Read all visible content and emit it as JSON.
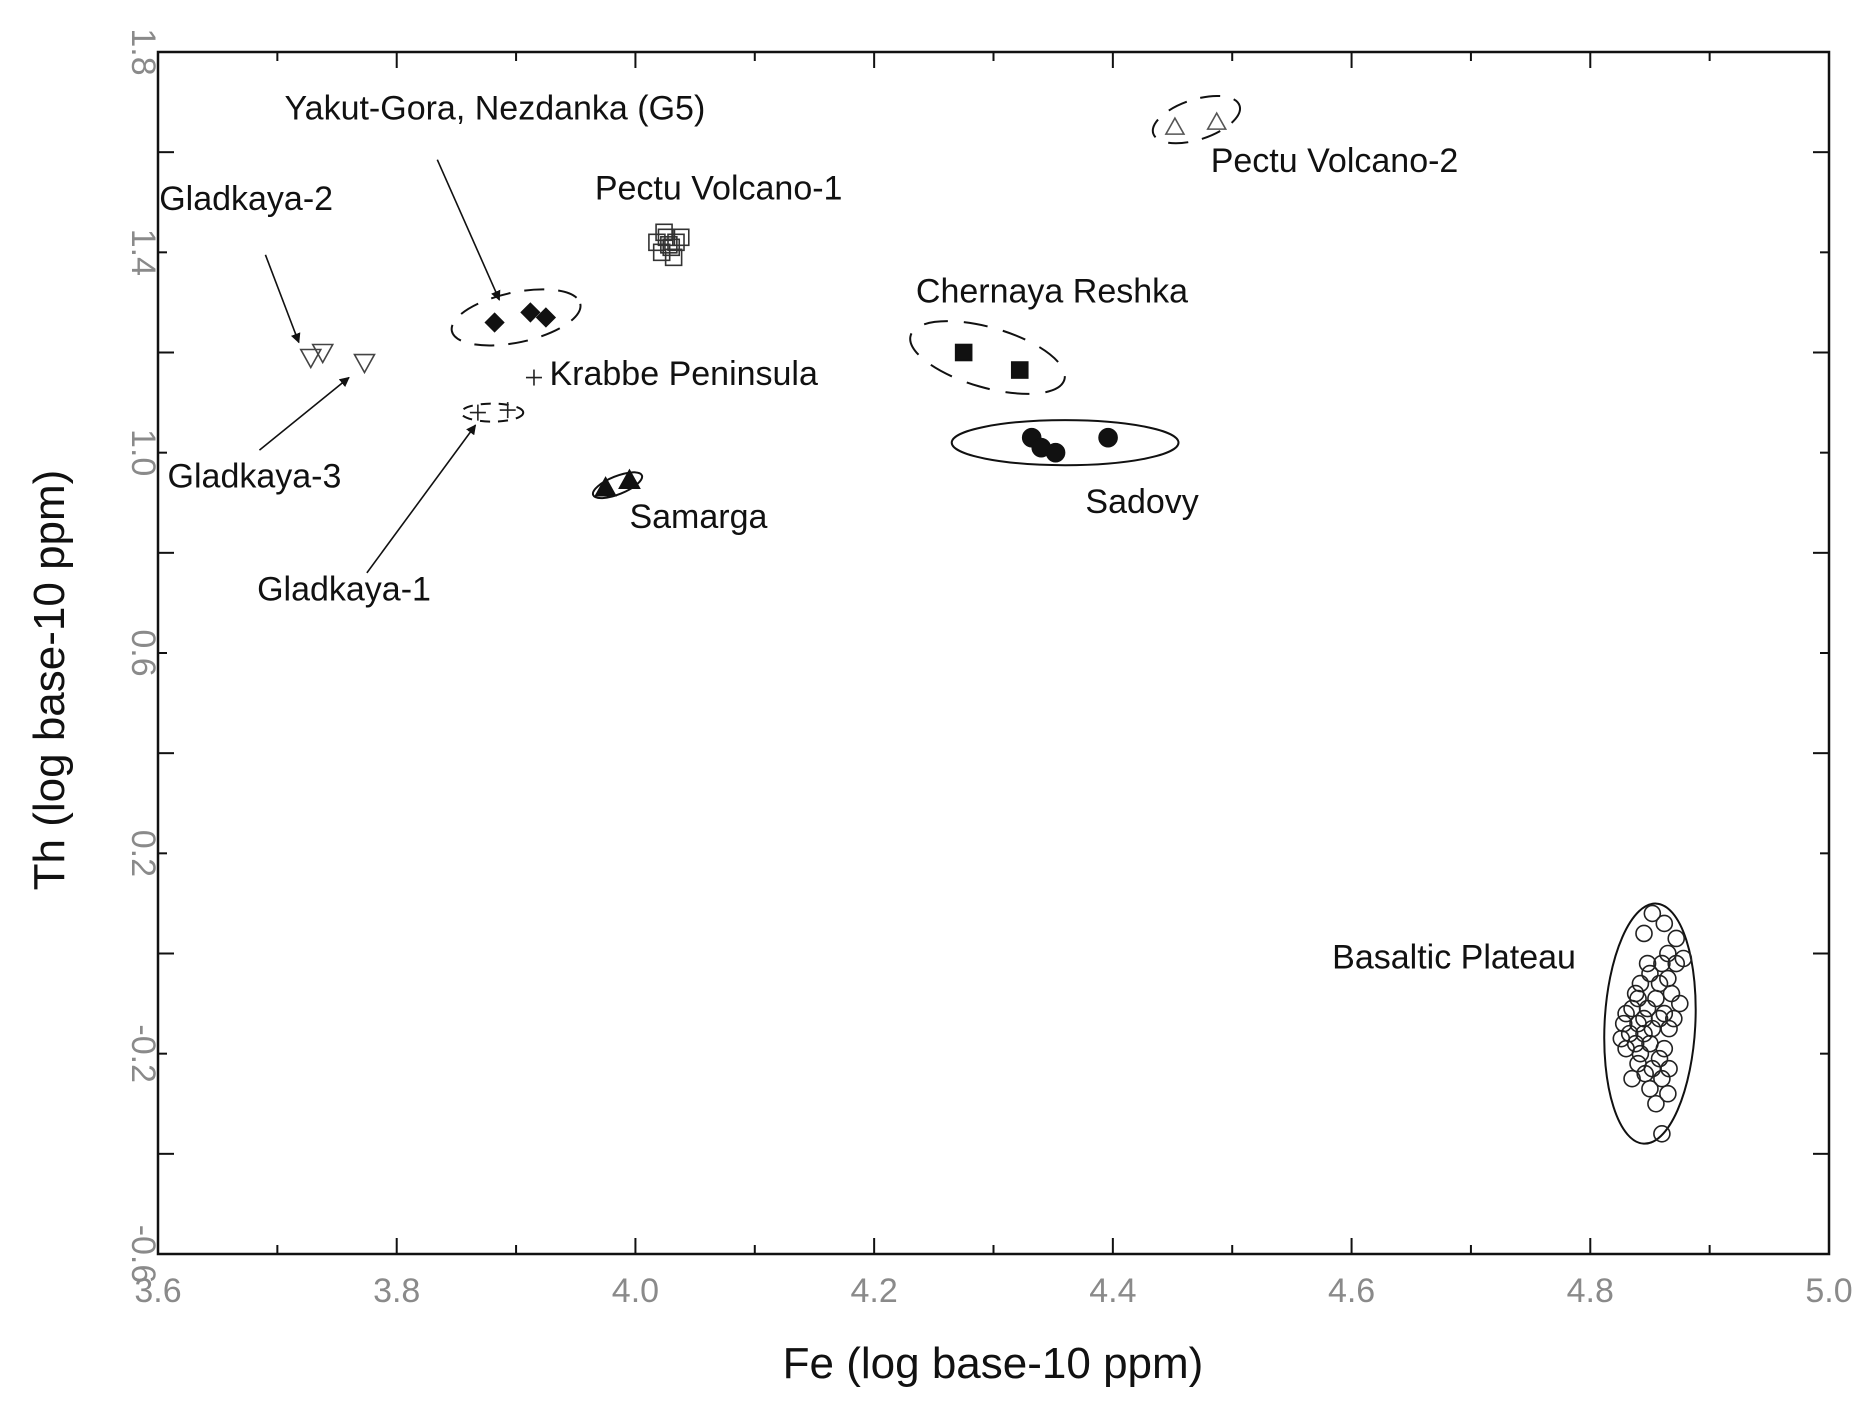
{
  "chart_data": {
    "type": "scatter",
    "title": "",
    "xlabel": "Fe (log base-10 ppm)",
    "ylabel": "Th (log base-10 ppm)",
    "xlim": [
      3.6,
      5.0
    ],
    "ylim": [
      -0.6,
      1.8
    ],
    "x_ticks": [
      "3.6",
      "3.8",
      "4.0",
      "4.2",
      "4.4",
      "4.6",
      "4.8",
      "5.0"
    ],
    "y_ticks": [
      "-0.6",
      "-0.2",
      "0.2",
      "0.6",
      "1.0",
      "1.4",
      "1.8"
    ],
    "grid": false,
    "labels": {
      "yakut_gora": "Yakut-Gora, Nezdanka (G5)",
      "pectu1": "Pectu Volcano-1",
      "pectu2": "Pectu Volcano-2",
      "gladkaya2": "Gladkaya-2",
      "gladkaya3": "Gladkaya-3",
      "gladkaya1": "Gladkaya-1",
      "krabbe": "Krabbe Peninsula",
      "samarga": "Samarga",
      "chernaya": "Chernaya Reshka",
      "sadovy": "Sadovy",
      "basaltic": "Basaltic Plateau"
    },
    "series": [
      {
        "name": "Yakut-Gora, Nezdanka (G5)",
        "marker": "diamond-filled",
        "points": [
          [
            3.882,
            1.26
          ],
          [
            3.912,
            1.28
          ],
          [
            3.925,
            1.27
          ]
        ]
      },
      {
        "name": "Pectu Volcano-1",
        "marker": "square-open",
        "points": [
          [
            4.018,
            1.42
          ],
          [
            4.022,
            1.4
          ],
          [
            4.026,
            1.43
          ],
          [
            4.03,
            1.41
          ],
          [
            4.034,
            1.42
          ],
          [
            4.038,
            1.43
          ],
          [
            4.024,
            1.44
          ],
          [
            4.032,
            1.39
          ],
          [
            4.028,
            1.415
          ]
        ]
      },
      {
        "name": "Pectu Volcano-2",
        "marker": "triangle-up-open",
        "points": [
          [
            4.452,
            1.65
          ],
          [
            4.487,
            1.66
          ]
        ]
      },
      {
        "name": "Gladkaya-2",
        "marker": "triangle-down-open",
        "points": [
          [
            3.728,
            1.19
          ],
          [
            3.738,
            1.2
          ]
        ]
      },
      {
        "name": "Gladkaya-3",
        "marker": "triangle-down-open",
        "points": [
          [
            3.773,
            1.18
          ]
        ]
      },
      {
        "name": "Gladkaya-1",
        "marker": "cross",
        "points": [
          [
            3.868,
            1.08
          ],
          [
            3.893,
            1.085
          ]
        ]
      },
      {
        "name": "Krabbe Peninsula",
        "marker": "cross",
        "points": [
          [
            3.915,
            1.15
          ]
        ]
      },
      {
        "name": "Samarga",
        "marker": "triangle-up-filled",
        "points": [
          [
            3.975,
            0.93
          ],
          [
            3.995,
            0.945
          ]
        ]
      },
      {
        "name": "Chernaya Reshka",
        "marker": "square-filled",
        "points": [
          [
            4.275,
            1.2
          ],
          [
            4.322,
            1.165
          ]
        ]
      },
      {
        "name": "Sadovy",
        "marker": "circle-filled",
        "points": [
          [
            4.332,
            1.03
          ],
          [
            4.34,
            1.01
          ],
          [
            4.352,
            1.0
          ],
          [
            4.396,
            1.03
          ]
        ]
      },
      {
        "name": "Basaltic Plateau",
        "marker": "circle-open",
        "points": [
          [
            4.852,
            0.08
          ],
          [
            4.862,
            0.06
          ],
          [
            4.872,
            0.03
          ],
          [
            4.845,
            0.04
          ],
          [
            4.865,
            0.0
          ],
          [
            4.878,
            -0.01
          ],
          [
            4.872,
            -0.02
          ],
          [
            4.86,
            -0.02
          ],
          [
            4.85,
            -0.04
          ],
          [
            4.842,
            -0.06
          ],
          [
            4.858,
            -0.06
          ],
          [
            4.868,
            -0.08
          ],
          [
            4.84,
            -0.09
          ],
          [
            4.855,
            -0.09
          ],
          [
            4.875,
            -0.1
          ],
          [
            4.835,
            -0.11
          ],
          [
            4.848,
            -0.11
          ],
          [
            4.862,
            -0.12
          ],
          [
            4.83,
            -0.12
          ],
          [
            4.845,
            -0.13
          ],
          [
            4.858,
            -0.13
          ],
          [
            4.87,
            -0.13
          ],
          [
            4.828,
            -0.14
          ],
          [
            4.84,
            -0.14
          ],
          [
            4.852,
            -0.15
          ],
          [
            4.866,
            -0.15
          ],
          [
            4.833,
            -0.16
          ],
          [
            4.845,
            -0.16
          ],
          [
            4.826,
            -0.17
          ],
          [
            4.838,
            -0.18
          ],
          [
            4.85,
            -0.18
          ],
          [
            4.862,
            -0.19
          ],
          [
            4.83,
            -0.19
          ],
          [
            4.842,
            -0.2
          ],
          [
            4.858,
            -0.21
          ],
          [
            4.84,
            -0.22
          ],
          [
            4.852,
            -0.23
          ],
          [
            4.866,
            -0.23
          ],
          [
            4.835,
            -0.25
          ],
          [
            4.86,
            -0.25
          ],
          [
            4.85,
            -0.27
          ],
          [
            4.855,
            -0.3
          ],
          [
            4.865,
            -0.28
          ],
          [
            4.846,
            -0.24
          ],
          [
            4.838,
            -0.08
          ],
          [
            4.86,
            -0.36
          ],
          [
            4.865,
            -0.05
          ],
          [
            4.848,
            -0.02
          ]
        ]
      }
    ],
    "ellipses": [
      {
        "group": "Yakut-Gora, Nezdanka (G5)",
        "cx": 3.9,
        "cy": 1.27,
        "rx": 0.055,
        "ry": 0.05,
        "rotate": -12,
        "dash": "20 14"
      },
      {
        "group": "Pectu Volcano-2",
        "cx": 4.47,
        "cy": 1.665,
        "rx": 0.038,
        "ry": 0.04,
        "rotate": -18,
        "dash": "20 14"
      },
      {
        "group": "Gladkaya-1",
        "cx": 3.88,
        "cy": 1.08,
        "rx": 0.026,
        "ry": 0.018,
        "rotate": 0,
        "dash": "10 8"
      },
      {
        "group": "Samarga",
        "cx": 3.985,
        "cy": 0.935,
        "rx": 0.022,
        "ry": 0.018,
        "rotate": -22,
        "dash": ""
      },
      {
        "group": "Chernaya Reshka",
        "cx": 4.295,
        "cy": 1.19,
        "rx": 0.067,
        "ry": 0.06,
        "rotate": 16,
        "dash": "24 16"
      },
      {
        "group": "Sadovy",
        "cx": 4.36,
        "cy": 1.02,
        "rx": 0.095,
        "ry": 0.045,
        "rotate": 0,
        "dash": ""
      },
      {
        "group": "Basaltic Plateau",
        "cx": 4.85,
        "cy": -0.14,
        "rx": 0.038,
        "ry": 0.24,
        "rotate": 3,
        "dash": ""
      }
    ],
    "annotations": [
      {
        "label_key": "yakut_gora",
        "text": "Yakut-Gora, Nezdanka (G5)",
        "text_at": [
          3.706,
          1.665
        ],
        "anchor": "start",
        "arrow_from": [
          3.834,
          1.585
        ],
        "arrow_to": [
          3.886,
          1.305
        ]
      },
      {
        "label_key": "pectu1",
        "text": "Pectu Volcano-1",
        "text_at": [
          3.966,
          1.505
        ],
        "anchor": "start"
      },
      {
        "label_key": "pectu2",
        "text": "Pectu Volcano-2",
        "text_at": [
          4.482,
          1.56
        ],
        "anchor": "start"
      },
      {
        "label_key": "gladkaya2",
        "text": "Gladkaya-2",
        "text_at": [
          3.601,
          1.485
        ],
        "anchor": "start",
        "arrow_from": [
          3.69,
          1.395
        ],
        "arrow_to": [
          3.718,
          1.22
        ]
      },
      {
        "label_key": "gladkaya3",
        "text": "Gladkaya-3",
        "text_at": [
          3.608,
          0.93
        ],
        "anchor": "start",
        "arrow_from": [
          3.685,
          1.005
        ],
        "arrow_to": [
          3.76,
          1.15
        ]
      },
      {
        "label_key": "gladkaya1",
        "text": "Gladkaya-1",
        "text_at": [
          3.683,
          0.705
        ],
        "anchor": "start",
        "arrow_from": [
          3.775,
          0.76
        ],
        "arrow_to": [
          3.866,
          1.055
        ]
      },
      {
        "label_key": "krabbe",
        "text": "Krabbe Peninsula",
        "text_at": [
          3.928,
          1.135
        ],
        "anchor": "start"
      },
      {
        "label_key": "samarga",
        "text": "Samarga",
        "text_at": [
          3.995,
          0.85
        ],
        "anchor": "start"
      },
      {
        "label_key": "chernaya",
        "text": "Chernaya Reshka",
        "text_at": [
          4.235,
          1.3
        ],
        "anchor": "start"
      },
      {
        "label_key": "sadovy",
        "text": "Sadovy",
        "text_at": [
          4.377,
          0.88
        ],
        "anchor": "start"
      },
      {
        "label_key": "basaltic",
        "text": "Basaltic Plateau",
        "text_at": [
          4.788,
          -0.03
        ],
        "anchor": "end"
      }
    ]
  }
}
